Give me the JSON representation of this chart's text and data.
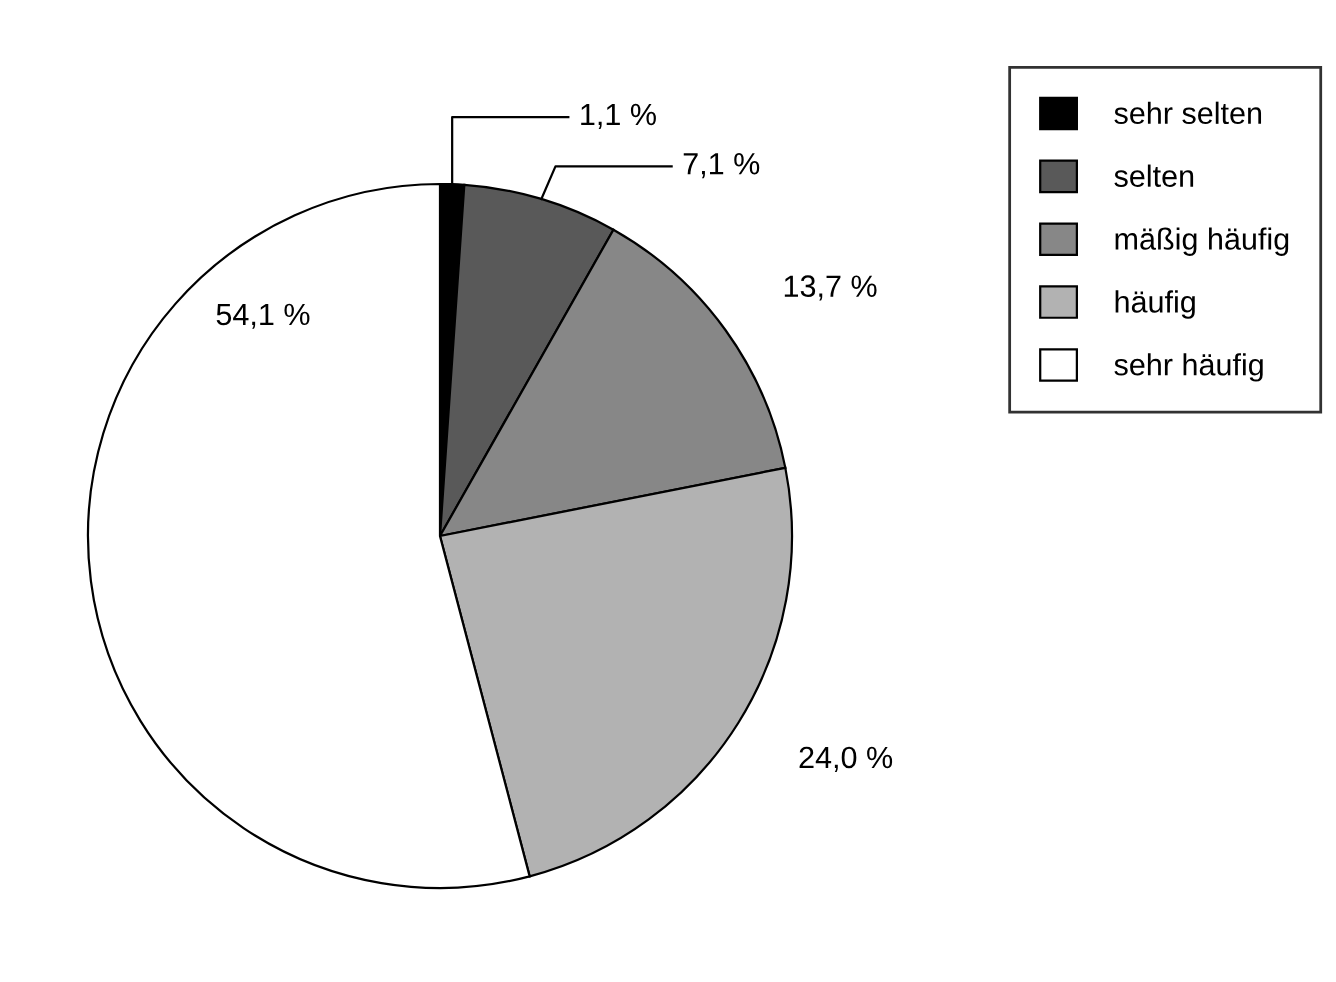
{
  "chart_data": {
    "type": "pie",
    "categories": [
      "sehr selten",
      "selten",
      "mäßig häufig",
      "häufig",
      "sehr häufig"
    ],
    "values": [
      1.1,
      7.1,
      13.7,
      24.0,
      54.1
    ],
    "colors": [
      "#000000",
      "#595959",
      "#878787",
      "#b2b2b2",
      "#ffffff"
    ],
    "value_labels": [
      "1,1 %",
      "7,1 %",
      "13,7 %",
      "24,0 %",
      "54,1 %"
    ],
    "legend": "top right"
  }
}
